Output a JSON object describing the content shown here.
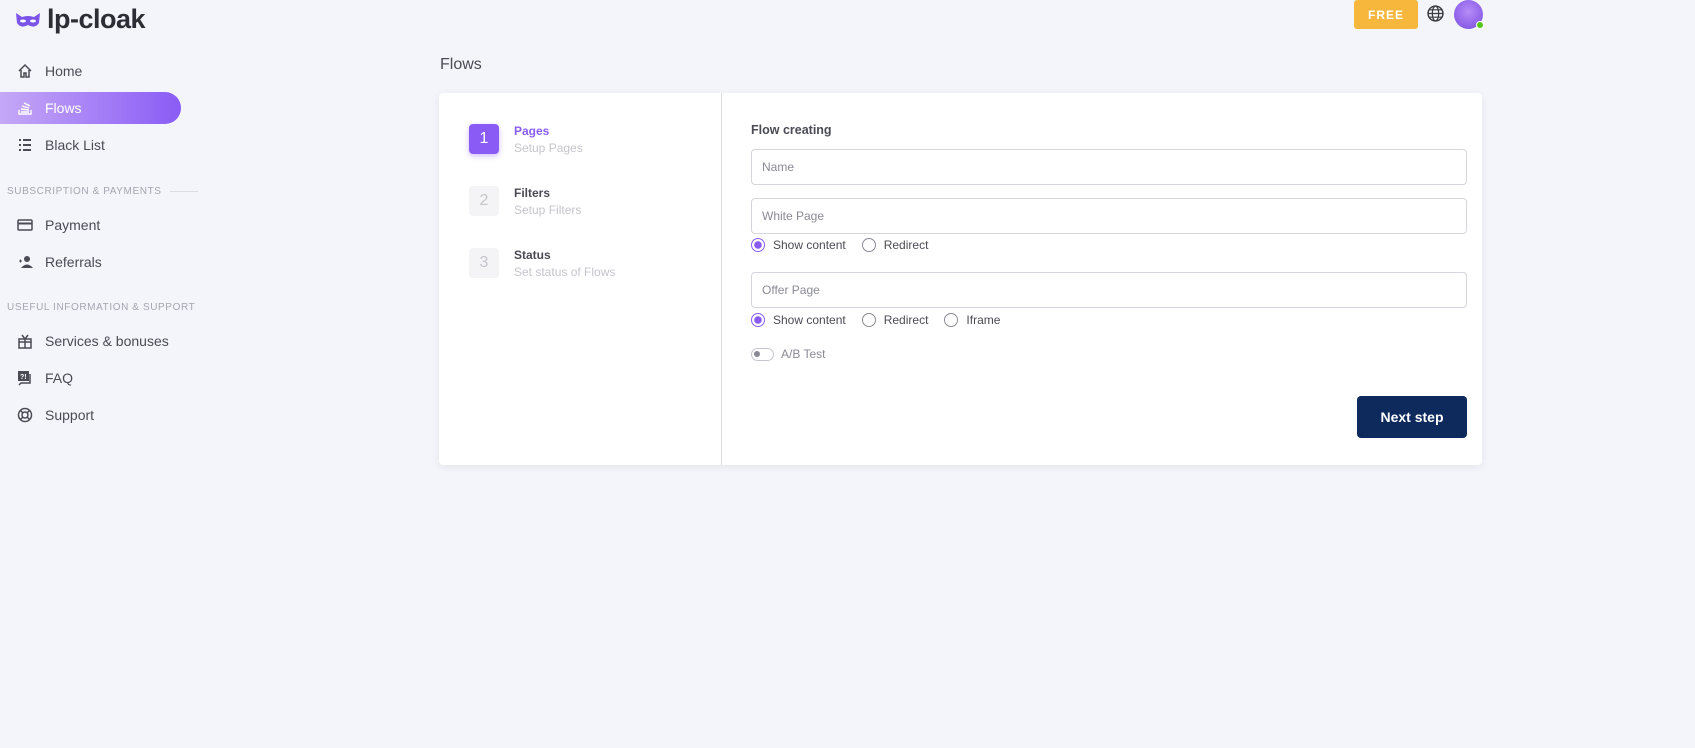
{
  "app": {
    "logo_text": "lp-cloak",
    "brand_color": "#8a5cf5"
  },
  "sidebar": {
    "items": [
      {
        "label": "Home",
        "icon": "home-icon"
      },
      {
        "label": "Flows",
        "icon": "stack-icon",
        "active": true
      },
      {
        "label": "Black List",
        "icon": "list-icon"
      }
    ],
    "section1": "SUBSCRIPTION & PAYMENTS",
    "items2": [
      {
        "label": "Payment",
        "icon": "credit-card-icon"
      },
      {
        "label": "Referrals",
        "icon": "user-star-icon"
      }
    ],
    "section2": "USEFUL INFORMATION & SUPPORT",
    "items3": [
      {
        "label": "Services & bonuses",
        "icon": "gift-icon"
      },
      {
        "label": "FAQ",
        "icon": "faq-icon"
      },
      {
        "label": "Support",
        "icon": "lifebuoy-icon"
      }
    ]
  },
  "header": {
    "plan_label": "FREE",
    "plan_color": "#f6b73c",
    "status": "online"
  },
  "page": {
    "title": "Flows"
  },
  "steps": [
    {
      "num": "1",
      "title": "Pages",
      "sub": "Setup Pages"
    },
    {
      "num": "2",
      "title": "Filters",
      "sub": "Setup Filters"
    },
    {
      "num": "3",
      "title": "Status",
      "sub": "Set status of Flows"
    }
  ],
  "form": {
    "title": "Flow creating",
    "name_placeholder": "Name",
    "white_placeholder": "White Page",
    "white_options": [
      "Show content",
      "Redirect"
    ],
    "offer_placeholder": "Offer Page",
    "offer_options": [
      "Show content",
      "Redirect",
      "Iframe"
    ],
    "ab_label": "A/B Test",
    "ab_enabled": false,
    "next_label": "Next step"
  }
}
